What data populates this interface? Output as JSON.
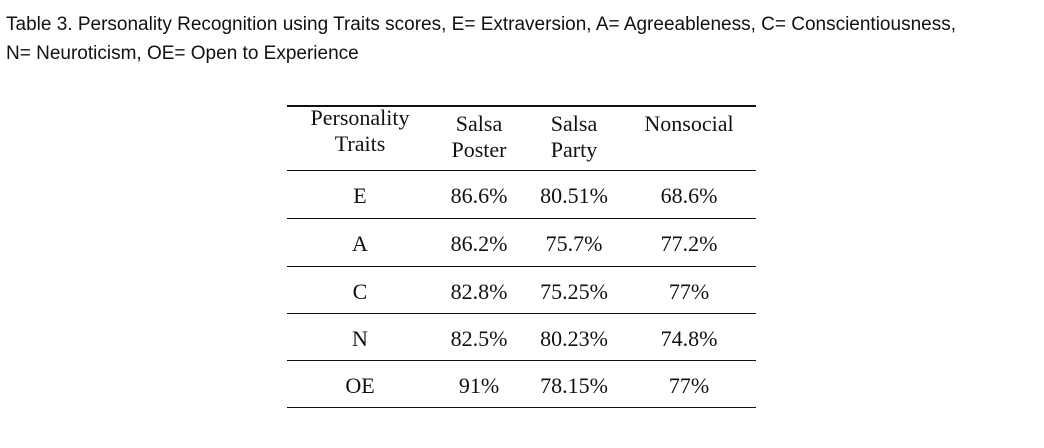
{
  "caption": {
    "line1": "Table 3.  Personality Recognition using Traits scores, E= Extraversion, A= Agreeableness, C= Conscientiousness,",
    "line2": "N= Neuroticism, OE= Open to Experience"
  },
  "table": {
    "headers": [
      {
        "line1": "Personality",
        "line2": "Traits"
      },
      {
        "line1": "Salsa",
        "line2": "Poster"
      },
      {
        "line1": "Salsa",
        "line2": "Party"
      },
      {
        "line1": "",
        "line2": "Nonsocial"
      }
    ],
    "rows": [
      [
        "E",
        "86.6%",
        "80.51%",
        "68.6%"
      ],
      [
        "A",
        "86.2%",
        "75.7%",
        "77.2%"
      ],
      [
        "C",
        "82.8%",
        "75.25%",
        "77%"
      ],
      [
        "N",
        "82.5%",
        "80.23%",
        "74.8%"
      ],
      [
        "OE",
        "91%",
        "78.15%",
        "77%"
      ]
    ]
  }
}
